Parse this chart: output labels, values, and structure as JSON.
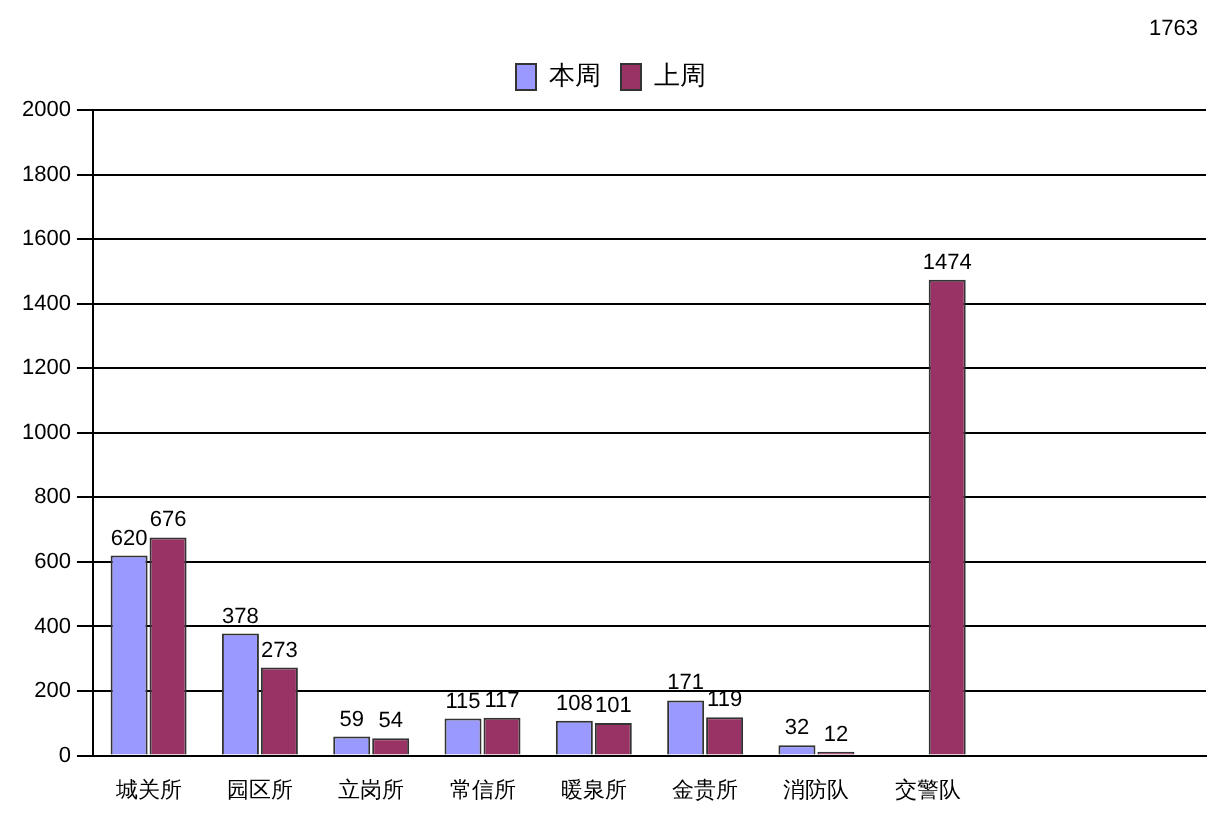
{
  "chart_data": {
    "type": "bar",
    "categories": [
      "城关所",
      "园区所",
      "立岗所",
      "常信所",
      "暖泉所",
      "金贵所",
      "消防队",
      "交警队",
      null,
      null
    ],
    "series": [
      {
        "name": "本周",
        "color": "#9999ff",
        "values": [
          620,
          378,
          59,
          115,
          108,
          171,
          32,
          null,
          null,
          null
        ]
      },
      {
        "name": "上周",
        "color": "#993366",
        "values": [
          676,
          273,
          54,
          117,
          101,
          119,
          12,
          1474,
          null,
          null
        ]
      }
    ],
    "ylim": [
      0,
      2000
    ],
    "yticks": [
      0,
      200,
      400,
      600,
      800,
      1000,
      1200,
      1400,
      1600,
      1800,
      2000
    ],
    "grid": "y",
    "legend": "top",
    "data_labels": true,
    "annotations": [
      "1763"
    ]
  }
}
